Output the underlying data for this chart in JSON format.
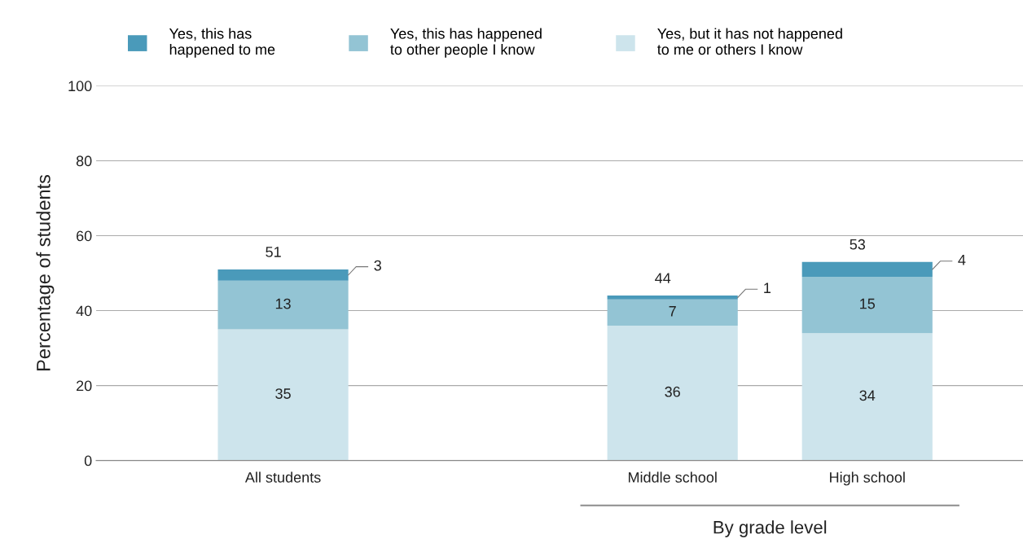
{
  "chart_data": {
    "type": "bar",
    "stacked": true,
    "ylabel": "Percentage of students",
    "categories": [
      "All students",
      null,
      "Middle school",
      "High school"
    ],
    "series": [
      {
        "name": "Yes, but it has not happened\nto me or others I know",
        "color": "#cde4ec",
        "values": [
          35,
          null,
          36,
          34
        ]
      },
      {
        "name": "Yes, this has happened\nto other people I know",
        "color": "#93c4d4",
        "values": [
          13,
          null,
          7,
          15
        ]
      },
      {
        "name": "Yes, this has\nhappened to me",
        "color": "#4a9aba",
        "values": [
          3,
          null,
          1,
          4
        ]
      }
    ],
    "totals": [
      "51",
      null,
      "44",
      "53"
    ],
    "data_labels": true,
    "ylim": [
      0,
      100
    ],
    "yticks": [
      0,
      20,
      40,
      60,
      80,
      100
    ],
    "grid": "y",
    "legend": "top",
    "annotations": [
      "By grade level"
    ]
  }
}
